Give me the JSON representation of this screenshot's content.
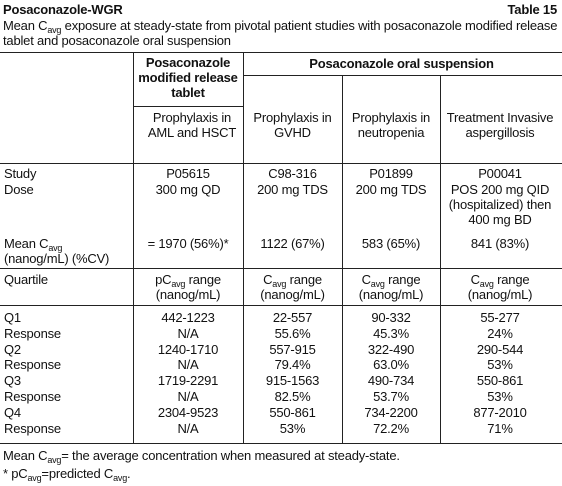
{
  "header": {
    "title": "Posaconazole-WGR",
    "table_number": "Table 15",
    "caption": [
      "Mean C",
      "avg",
      " exposure at steady-state from pivotal patient studies with posaconazole modified release tablet and posaconazole oral suspension"
    ]
  },
  "table": {
    "group_headers": [
      "Posaconazole modified release tablet",
      "Posaconazole oral suspension"
    ],
    "indications": [
      "Prophylaxis in AML and HSCT",
      "Prophylaxis in GVHD",
      "Prophylaxis in neutropenia",
      "Treatment Invasive aspergillosis"
    ],
    "rows": [
      {
        "label": "Study",
        "cells": [
          "P05615",
          "C98-316",
          "P01899",
          "P00041"
        ]
      },
      {
        "label": "Dose",
        "cells": [
          "300 mg QD",
          "200 mg TDS",
          "200 mg TDS",
          "POS 200 mg QID (hospitalized) then 400 mg BD"
        ]
      },
      {
        "label": [
          "Mean C",
          "avg",
          " (nanog/mL) (%CV)"
        ],
        "cells": [
          "= 1970 (56%)*",
          "1122 (67%)",
          "583 (65%)",
          "841 (83%)"
        ]
      },
      {
        "label": "Quartile",
        "cells": [
          [
            "pC",
            "avg",
            " range (nanog/mL)"
          ],
          [
            "C",
            "avg",
            " range (nanog/mL)"
          ],
          [
            "C",
            "avg",
            " range (nanog/mL)"
          ],
          [
            "C",
            "avg",
            " range (nanog/mL)"
          ]
        ]
      },
      {
        "label": "Q1",
        "cells": [
          "442-1223",
          "22-557",
          "90-332",
          "55-277"
        ]
      },
      {
        "label": "Response",
        "cells": [
          "N/A",
          "55.6%",
          "45.3%",
          "24%"
        ]
      },
      {
        "label": "Q2",
        "cells": [
          "1240-1710",
          "557-915",
          "322-490",
          "290-544"
        ]
      },
      {
        "label": "Response",
        "cells": [
          "N/A",
          "79.4%",
          "63.0%",
          "53%"
        ]
      },
      {
        "label": "Q3",
        "cells": [
          "1719-2291",
          "915-1563",
          "490-734",
          "550-861"
        ]
      },
      {
        "label": "Response",
        "cells": [
          "N/A",
          "82.5%",
          "53.7%",
          "53%"
        ]
      },
      {
        "label": "Q4",
        "cells": [
          "2304-9523",
          "550-861",
          "734-2200",
          "877-2010"
        ]
      },
      {
        "label": "Response",
        "cells": [
          "N/A",
          "53%",
          "72.2%",
          "71%"
        ]
      }
    ]
  },
  "footnotes": [
    [
      "Mean C",
      "avg",
      "= the average concentration when measured at steady-state."
    ],
    [
      "* pC",
      "avg",
      "=predicted C",
      "avg",
      "."
    ]
  ]
}
